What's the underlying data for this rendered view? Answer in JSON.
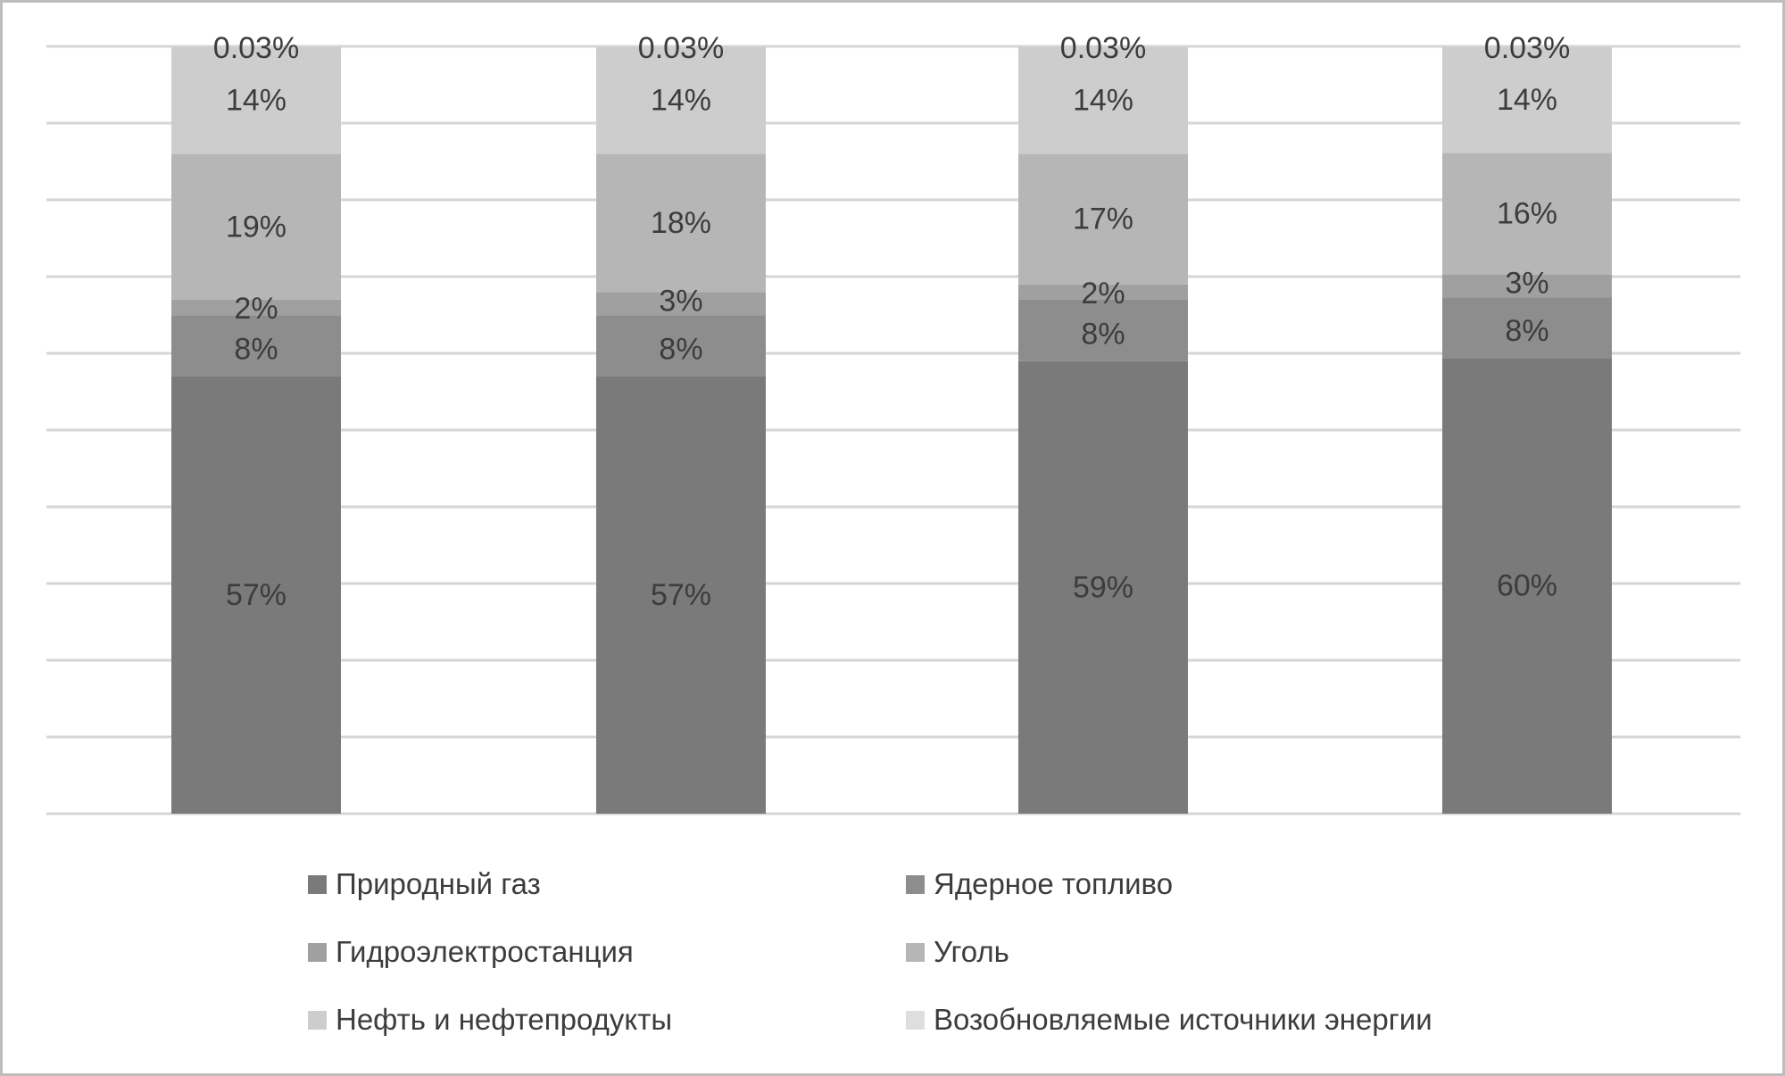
{
  "chart_data": {
    "type": "bar",
    "stacked": true,
    "percent": true,
    "categories": [
      "",
      "",
      "",
      ""
    ],
    "ylim": [
      0,
      100
    ],
    "grid": true,
    "legend_placement": "bottom",
    "title": "",
    "xlabel": "",
    "ylabel": "",
    "series": [
      {
        "name": "Природный газ",
        "color": "#7a7a7a",
        "values": [
          57,
          57,
          59,
          60
        ],
        "labels": [
          "57%",
          "57%",
          "59%",
          "60%"
        ]
      },
      {
        "name": "Ядерное топливо",
        "color": "#8d8d8d",
        "values": [
          8,
          8,
          8,
          8
        ],
        "labels": [
          "8%",
          "8%",
          "8%",
          "8%"
        ]
      },
      {
        "name": "Гидроэлектростанция",
        "color": "#a0a0a0",
        "values": [
          2,
          3,
          2,
          3
        ],
        "labels": [
          "2%",
          "3%",
          "2%",
          "3%"
        ]
      },
      {
        "name": "Уголь",
        "color": "#b6b6b6",
        "values": [
          19,
          18,
          17,
          16
        ],
        "labels": [
          "19%",
          "18%",
          "17%",
          "16%"
        ]
      },
      {
        "name": "Нефть и нефтепродукты",
        "color": "#cdcdcd",
        "values": [
          14,
          14,
          14,
          14
        ],
        "labels": [
          "14%",
          "14%",
          "14%",
          "14%"
        ]
      },
      {
        "name": "Возобновляемые источники энергии",
        "color": "#dedede",
        "values": [
          0.03,
          0.03,
          0.03,
          0.03
        ],
        "labels": [
          "0.03%",
          "0.03%",
          "0.03%",
          "0.03%"
        ]
      }
    ]
  }
}
